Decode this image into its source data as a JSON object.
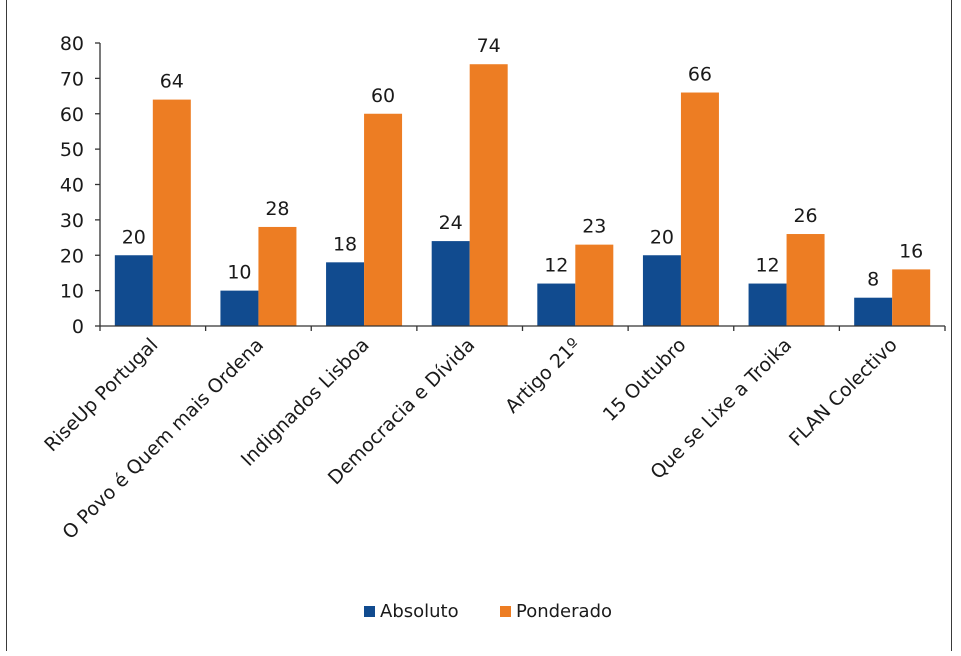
{
  "chart_data": {
    "type": "bar",
    "title": "",
    "xlabel": "",
    "ylabel": "",
    "ylim": [
      0,
      80
    ],
    "yticks": [
      0,
      10,
      20,
      30,
      40,
      50,
      60,
      70,
      80
    ],
    "grid": false,
    "legend_position": "bottom",
    "categories": [
      "RiseUp Portugal",
      "O Povo é Quem mais Ordena",
      "Indignados Lisboa",
      "Democracia e Dívida",
      "Artigo 21º",
      "15 Outubro",
      "Que se Lixe a Troika",
      "FLAN Colectivo"
    ],
    "series": [
      {
        "name": "Absoluto",
        "color": "#114B8F",
        "values": [
          20,
          10,
          18,
          24,
          12,
          20,
          12,
          8
        ]
      },
      {
        "name": "Ponderado",
        "color": "#ED7D23",
        "values": [
          64,
          28,
          60,
          74,
          23,
          66,
          26,
          16
        ]
      }
    ]
  }
}
